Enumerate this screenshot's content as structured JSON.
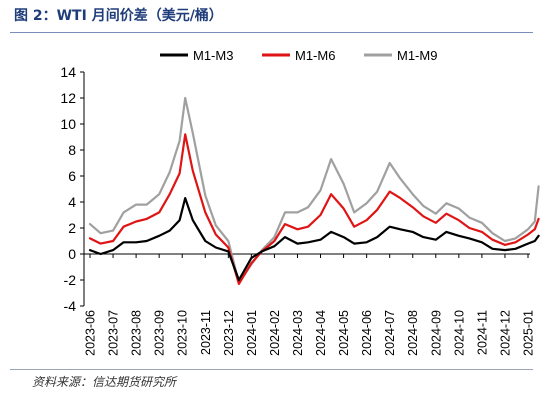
{
  "chart_data": {
    "type": "line",
    "title": "图 2：WTI 月间价差（美元/桶）",
    "source": "资料来源：信达期货研究所",
    "ylim": [
      -4,
      14
    ],
    "y_ticks": [
      "14",
      "12",
      "10",
      "8",
      "6",
      "4",
      "2",
      "0",
      "-2",
      "-4"
    ],
    "x_tick_labels": [
      "2023-06",
      "2023-07",
      "2023-08",
      "2023-09",
      "2023-10",
      "2023-11",
      "2023-12",
      "2024-01",
      "2024-02",
      "2024-03",
      "2024-04",
      "2024-05",
      "2024-06",
      "2024-07",
      "2024-08",
      "2024-09",
      "2024-10",
      "2024-11",
      "2024-12",
      "2025-01"
    ],
    "legend_position": "top-center",
    "grid": false,
    "x": [
      "2023-06-01",
      "2023-06-15",
      "2023-07-01",
      "2023-07-15",
      "2023-08-01",
      "2023-08-15",
      "2023-09-01",
      "2023-09-15",
      "2023-09-28",
      "2023-10-05",
      "2023-10-15",
      "2023-11-01",
      "2023-11-15",
      "2023-12-01",
      "2023-12-15",
      "2024-01-01",
      "2024-01-15",
      "2024-02-01",
      "2024-02-15",
      "2024-03-01",
      "2024-03-15",
      "2024-04-01",
      "2024-04-15",
      "2024-05-01",
      "2024-05-15",
      "2024-06-01",
      "2024-06-15",
      "2024-07-01",
      "2024-07-15",
      "2024-08-01",
      "2024-08-15",
      "2024-09-01",
      "2024-09-15",
      "2024-10-01",
      "2024-10-15",
      "2024-11-01",
      "2024-11-15",
      "2024-12-01",
      "2024-12-15",
      "2025-01-01",
      "2025-01-10",
      "2025-01-15"
    ],
    "series": [
      {
        "name": "M1-M3",
        "color": "#000000",
        "values": [
          0.3,
          0.0,
          0.3,
          0.9,
          0.9,
          1.0,
          1.4,
          1.8,
          2.6,
          4.3,
          2.6,
          1.0,
          0.5,
          0.2,
          -2.0,
          -0.3,
          0.2,
          0.6,
          1.3,
          0.8,
          0.9,
          1.1,
          1.7,
          1.3,
          0.8,
          0.9,
          1.3,
          2.1,
          1.9,
          1.7,
          1.3,
          1.1,
          1.7,
          1.4,
          1.2,
          0.9,
          0.4,
          0.3,
          0.4,
          0.8,
          1.0,
          1.4
        ]
      },
      {
        "name": "M1-M6",
        "color": "#e01414",
        "values": [
          1.2,
          0.8,
          1.0,
          2.1,
          2.5,
          2.7,
          3.2,
          4.6,
          6.2,
          9.2,
          6.4,
          3.2,
          1.5,
          0.5,
          -2.3,
          -0.7,
          0.2,
          1.0,
          2.3,
          1.9,
          2.1,
          3.0,
          4.6,
          3.5,
          2.1,
          2.6,
          3.4,
          4.8,
          4.3,
          3.6,
          2.9,
          2.4,
          3.1,
          2.6,
          2.0,
          1.7,
          1.1,
          0.7,
          0.9,
          1.5,
          1.9,
          2.7
        ]
      },
      {
        "name": "M1-M9",
        "color": "#a0a0a0",
        "values": [
          2.3,
          1.6,
          1.8,
          3.2,
          3.8,
          3.8,
          4.6,
          6.3,
          8.7,
          12.0,
          9.3,
          4.5,
          2.2,
          1.0,
          -2.2,
          -0.8,
          0.3,
          1.3,
          3.2,
          3.2,
          3.6,
          4.9,
          7.3,
          5.4,
          3.2,
          3.9,
          4.8,
          7.0,
          5.8,
          4.6,
          3.7,
          3.1,
          3.9,
          3.5,
          2.8,
          2.4,
          1.6,
          1.0,
          1.2,
          1.9,
          2.5,
          5.2
        ]
      }
    ]
  }
}
